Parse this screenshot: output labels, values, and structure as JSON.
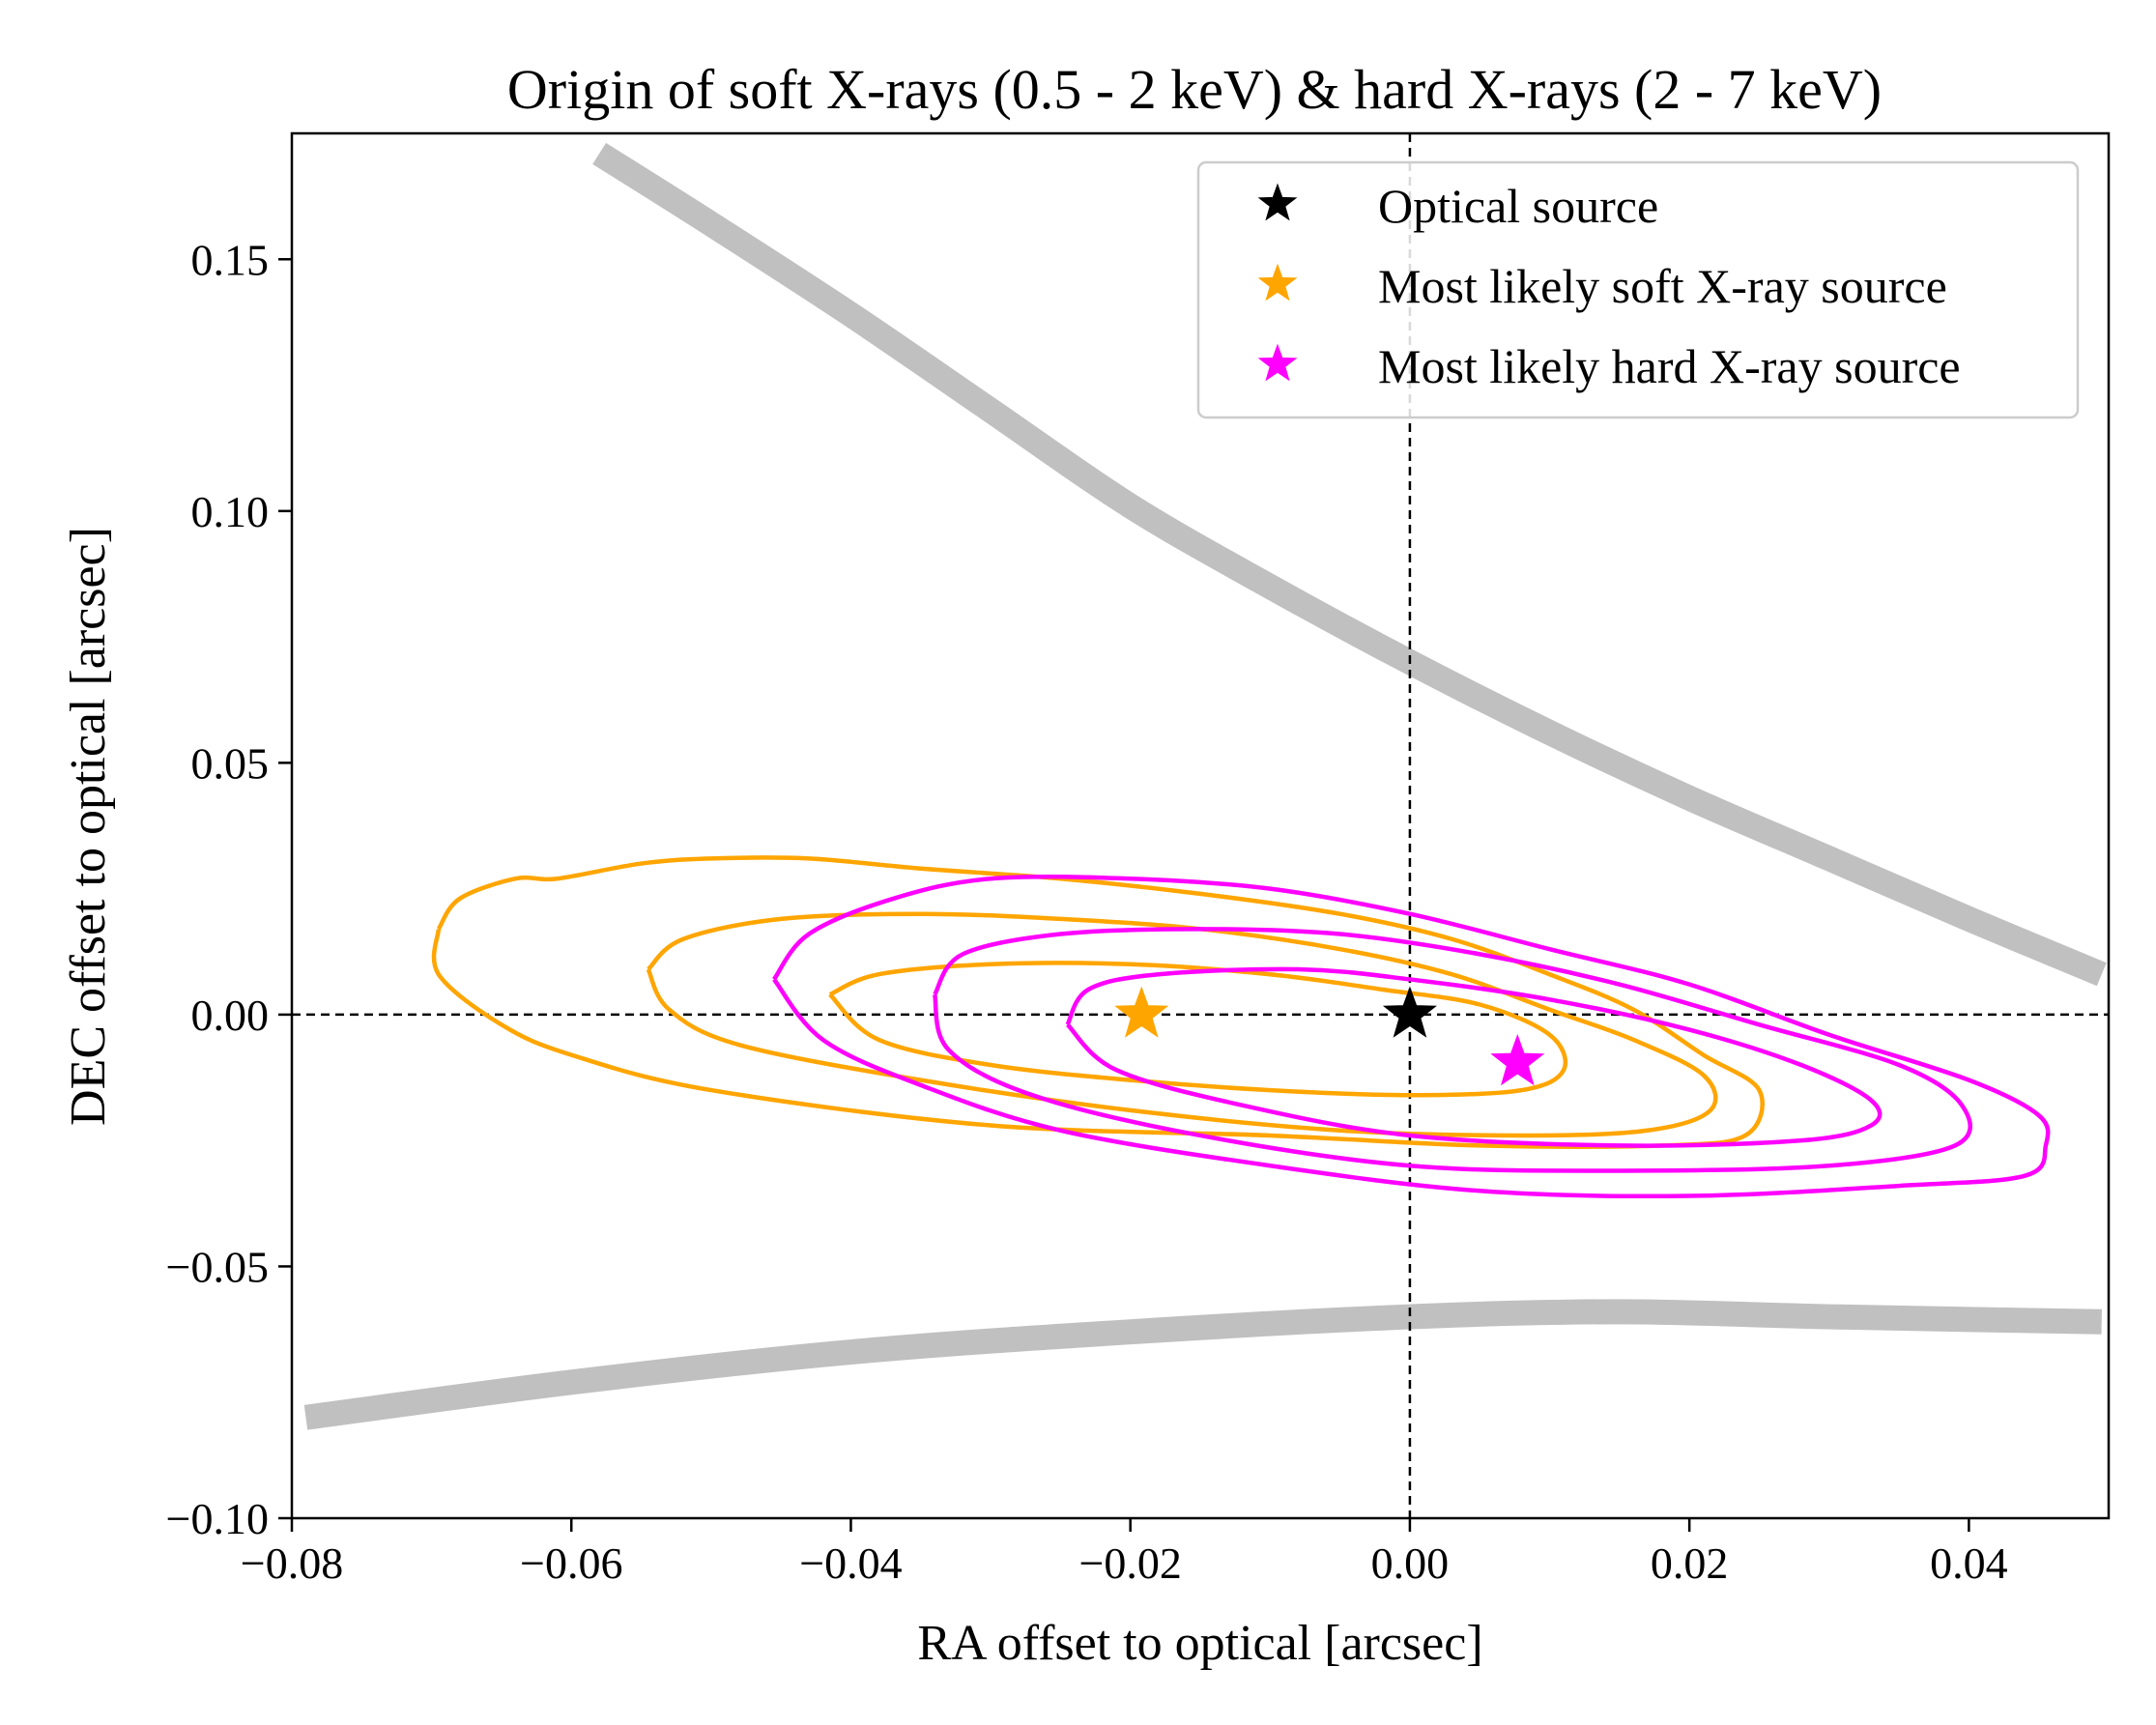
{
  "chart_data": {
    "type": "scatter",
    "title": "Origin of soft X-rays (0.5 - 2 keV) & hard X-rays (2 - 7 keV)",
    "xlabel": "RA offset to optical [arcsec]",
    "ylabel": "DEC offset to optical [arcsec]",
    "xlim": [
      -0.08,
      0.05
    ],
    "ylim": [
      -0.1,
      0.175
    ],
    "xticks": [
      -0.08,
      -0.06,
      -0.04,
      -0.02,
      0.0,
      0.02,
      0.04
    ],
    "xtick_labels": [
      "−0.08",
      "−0.06",
      "−0.04",
      "−0.02",
      "0.00",
      "0.02",
      "0.04"
    ],
    "yticks": [
      -0.1,
      -0.05,
      0.0,
      0.05,
      0.1,
      0.15
    ],
    "ytick_labels": [
      "−0.10",
      "−0.05",
      "0.00",
      "0.05",
      "0.10",
      "0.15"
    ],
    "reference_lines": {
      "x": 0.0,
      "y": 0.0,
      "style": "dashed",
      "color": "#000000"
    },
    "colors": {
      "optical": "#000000",
      "soft": "#FFA500",
      "hard": "#FF00FF",
      "boundary": "#C0C0C0"
    },
    "legend": {
      "placement": "top-right",
      "entries": [
        {
          "label": "Optical source",
          "color": "#000000",
          "marker": "star-icon"
        },
        {
          "label": "Most likely soft X-ray source",
          "color": "#FFA500",
          "marker": "star-icon"
        },
        {
          "label": "Most likely hard X-ray source",
          "color": "#FF00FF",
          "marker": "star-icon"
        }
      ]
    },
    "points": [
      {
        "name": "Optical source",
        "x": 0.0,
        "y": 0.0,
        "color": "#000000"
      },
      {
        "name": "Most likely soft X-ray source",
        "x": -0.0192,
        "y": 0.0,
        "color": "#FFA500"
      },
      {
        "name": "Most likely hard X-ray source",
        "x": 0.0077,
        "y": -0.0095,
        "color": "#FF00FF"
      }
    ],
    "boundary_curves": [
      {
        "name": "upper",
        "color": "#C0C0C0",
        "points": [
          [
            -0.058,
            0.171
          ],
          [
            -0.05,
            0.157
          ],
          [
            -0.04,
            0.139
          ],
          [
            -0.03,
            0.12
          ],
          [
            -0.02,
            0.101
          ],
          [
            -0.01,
            0.085
          ],
          [
            0.0,
            0.07
          ],
          [
            0.01,
            0.056
          ],
          [
            0.02,
            0.043
          ],
          [
            0.03,
            0.031
          ],
          [
            0.04,
            0.019
          ],
          [
            0.0495,
            0.008
          ]
        ]
      },
      {
        "name": "lower",
        "color": "#C0C0C0",
        "points": [
          [
            -0.079,
            -0.08
          ],
          [
            -0.06,
            -0.073
          ],
          [
            -0.04,
            -0.067
          ],
          [
            -0.02,
            -0.063
          ],
          [
            0.0,
            -0.06
          ],
          [
            0.015,
            -0.059
          ],
          [
            0.03,
            -0.06
          ],
          [
            0.0495,
            -0.061
          ]
        ]
      }
    ],
    "contours": [
      {
        "band": "soft",
        "level": "outer",
        "color": "#FFA500",
        "points": [
          [
            -0.0695,
            0.017
          ],
          [
            -0.068,
            0.023
          ],
          [
            -0.064,
            0.027
          ],
          [
            -0.061,
            0.027
          ],
          [
            -0.055,
            0.03
          ],
          [
            -0.05,
            0.031
          ],
          [
            -0.043,
            0.031
          ],
          [
            -0.035,
            0.029
          ],
          [
            -0.025,
            0.027
          ],
          [
            -0.015,
            0.024
          ],
          [
            -0.005,
            0.02
          ],
          [
            0.003,
            0.015
          ],
          [
            0.01,
            0.008
          ],
          [
            0.016,
            0.001
          ],
          [
            0.021,
            -0.008
          ],
          [
            0.025,
            -0.015
          ],
          [
            0.024,
            -0.024
          ],
          [
            0.018,
            -0.026
          ],
          [
            0.005,
            -0.026
          ],
          [
            -0.01,
            -0.024
          ],
          [
            -0.03,
            -0.022
          ],
          [
            -0.05,
            -0.015
          ],
          [
            -0.06,
            -0.008
          ],
          [
            -0.065,
            -0.002
          ],
          [
            -0.0695,
            0.008
          ],
          [
            -0.0695,
            0.017
          ]
        ]
      },
      {
        "band": "soft",
        "level": "middle",
        "color": "#FFA500",
        "points": [
          [
            -0.0545,
            0.009
          ],
          [
            -0.052,
            0.015
          ],
          [
            -0.045,
            0.019
          ],
          [
            -0.035,
            0.02
          ],
          [
            -0.025,
            0.019
          ],
          [
            -0.015,
            0.017
          ],
          [
            -0.005,
            0.013
          ],
          [
            0.003,
            0.008
          ],
          [
            0.01,
            0.001
          ],
          [
            0.016,
            -0.005
          ],
          [
            0.021,
            -0.012
          ],
          [
            0.0215,
            -0.019
          ],
          [
            0.017,
            -0.023
          ],
          [
            0.008,
            -0.024
          ],
          [
            -0.005,
            -0.023
          ],
          [
            -0.02,
            -0.019
          ],
          [
            -0.035,
            -0.013
          ],
          [
            -0.048,
            -0.006
          ],
          [
            -0.053,
            0.001
          ],
          [
            -0.0545,
            0.009
          ]
        ]
      },
      {
        "band": "soft",
        "level": "inner",
        "color": "#FFA500",
        "points": [
          [
            -0.0415,
            0.004
          ],
          [
            -0.038,
            0.008
          ],
          [
            -0.03,
            0.01
          ],
          [
            -0.02,
            0.01
          ],
          [
            -0.01,
            0.008
          ],
          [
            -0.002,
            0.005
          ],
          [
            0.005,
            0.002
          ],
          [
            0.01,
            -0.004
          ],
          [
            0.011,
            -0.011
          ],
          [
            0.008,
            -0.015
          ],
          [
            0.0,
            -0.016
          ],
          [
            -0.01,
            -0.015
          ],
          [
            -0.02,
            -0.013
          ],
          [
            -0.03,
            -0.01
          ],
          [
            -0.038,
            -0.005
          ],
          [
            -0.0415,
            0.004
          ]
        ]
      },
      {
        "band": "hard",
        "level": "outer",
        "color": "#FF00FF",
        "points": [
          [
            -0.0455,
            0.007
          ],
          [
            -0.043,
            0.016
          ],
          [
            -0.037,
            0.023
          ],
          [
            -0.03,
            0.027
          ],
          [
            -0.02,
            0.027
          ],
          [
            -0.01,
            0.025
          ],
          [
            0.0,
            0.02
          ],
          [
            0.01,
            0.013
          ],
          [
            0.02,
            0.006
          ],
          [
            0.03,
            -0.004
          ],
          [
            0.04,
            -0.013
          ],
          [
            0.045,
            -0.02
          ],
          [
            0.0455,
            -0.026
          ],
          [
            0.044,
            -0.032
          ],
          [
            0.035,
            -0.034
          ],
          [
            0.02,
            -0.036
          ],
          [
            0.005,
            -0.035
          ],
          [
            -0.01,
            -0.03
          ],
          [
            -0.025,
            -0.023
          ],
          [
            -0.035,
            -0.014
          ],
          [
            -0.042,
            -0.005
          ],
          [
            -0.0455,
            0.007
          ]
        ]
      },
      {
        "band": "hard",
        "level": "middle",
        "color": "#FF00FF",
        "points": [
          [
            -0.034,
            0.004
          ],
          [
            -0.032,
            0.012
          ],
          [
            -0.025,
            0.016
          ],
          [
            -0.015,
            0.017
          ],
          [
            -0.005,
            0.016
          ],
          [
            0.005,
            0.012
          ],
          [
            0.015,
            0.006
          ],
          [
            0.025,
            -0.002
          ],
          [
            0.035,
            -0.01
          ],
          [
            0.0395,
            -0.018
          ],
          [
            0.039,
            -0.026
          ],
          [
            0.03,
            -0.03
          ],
          [
            0.015,
            -0.031
          ],
          [
            0.0,
            -0.03
          ],
          [
            -0.015,
            -0.024
          ],
          [
            -0.027,
            -0.016
          ],
          [
            -0.033,
            -0.007
          ],
          [
            -0.034,
            0.004
          ]
        ]
      },
      {
        "band": "hard",
        "level": "inner",
        "color": "#FF00FF",
        "points": [
          [
            -0.0245,
            -0.002
          ],
          [
            -0.023,
            0.005
          ],
          [
            -0.018,
            0.008
          ],
          [
            -0.008,
            0.009
          ],
          [
            0.0,
            0.007
          ],
          [
            0.01,
            0.003
          ],
          [
            0.02,
            -0.003
          ],
          [
            0.028,
            -0.01
          ],
          [
            0.033,
            -0.017
          ],
          [
            0.033,
            -0.022
          ],
          [
            0.028,
            -0.025
          ],
          [
            0.015,
            -0.026
          ],
          [
            0.0,
            -0.024
          ],
          [
            -0.012,
            -0.018
          ],
          [
            -0.021,
            -0.011
          ],
          [
            -0.0245,
            -0.002
          ]
        ]
      }
    ]
  }
}
